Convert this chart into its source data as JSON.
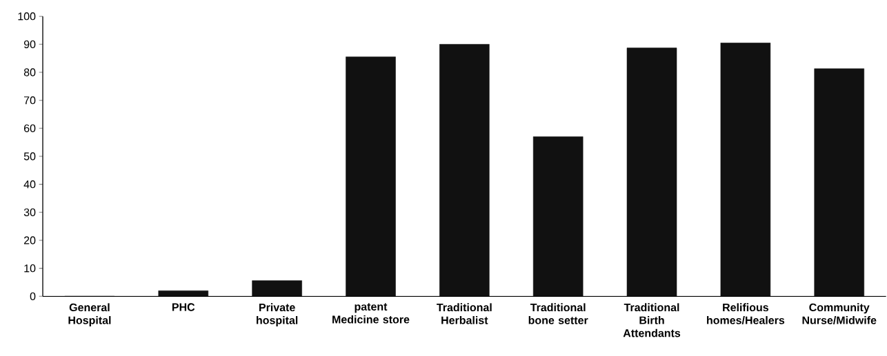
{
  "chart_data": {
    "type": "bar",
    "categories": [
      "General Hospital",
      "PHC",
      "Private hospital",
      "patent Medicine store",
      "Traditional Herbalist",
      "Traditional bone setter",
      "Traditional Birth Attendants",
      "Relifious homes/Healers",
      "Community Nurse/Midwife"
    ],
    "values": [
      0,
      2,
      5.6,
      85.5,
      90,
      57,
      88.7,
      90.5,
      81.3
    ],
    "color": "#111111",
    "ylim": [
      0,
      100
    ],
    "yticks": [
      0,
      10,
      20,
      30,
      40,
      50,
      60,
      70,
      80,
      90,
      100
    ],
    "grid": false
  }
}
